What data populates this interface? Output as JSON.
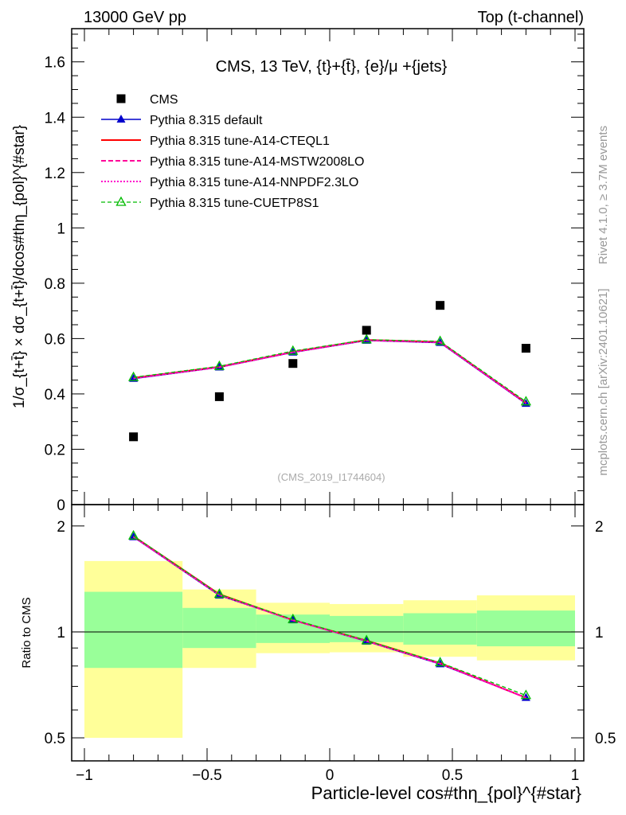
{
  "header": {
    "left": "13000 GeV pp",
    "right": "Top (t-channel)"
  },
  "side_labels": {
    "rivet": "Rivet 4.1.0, ≥ 3.7M events",
    "site": "mcplots.cern.ch [arXiv:2401.10621]"
  },
  "colors": {
    "cms": "#000000",
    "default": "#0000cc",
    "cteql1": "#ff0000",
    "mstw": "#ff0099",
    "nnpdf": "#ff00cc",
    "cuetp": "#00bb00",
    "band_inner": "#99ff99",
    "band_outer": "#ffff99"
  },
  "chart_data": [
    {
      "type": "scatter",
      "name": "main-panel",
      "title": "CMS, 13 TeV, {t}+{t̄}, {e}/μ +{jets}",
      "watermark": "(CMS_2019_I1744604)",
      "ylabel": "1/σ_{t+t̄} × dσ_{t+t̄}/dcos#thη_{pol}^{#star}",
      "xlim": [
        -1,
        1
      ],
      "ylim": [
        0,
        1.72
      ],
      "yticks": [
        0,
        0.2,
        0.4,
        0.6,
        0.8,
        1,
        1.2,
        1.4,
        1.6
      ],
      "ytick_labels": [
        "0",
        "0.2",
        "0.4",
        "0.6",
        "0.8",
        "1",
        "1.2",
        "1.4",
        "1.6"
      ],
      "x": [
        -0.8,
        -0.45,
        -0.15,
        0.15,
        0.45,
        0.8
      ],
      "series": [
        {
          "name": "CMS",
          "key": "cms",
          "style": "square",
          "values": [
            0.245,
            0.39,
            0.51,
            0.63,
            0.72,
            0.565
          ]
        },
        {
          "name": "Pythia 8.315 default",
          "key": "default",
          "style": "solid-tri",
          "values": [
            0.455,
            0.496,
            0.55,
            0.593,
            0.585,
            0.365
          ]
        },
        {
          "name": "Pythia 8.315 tune-A14-CTEQL1",
          "key": "cteql1",
          "style": "solid",
          "values": [
            0.458,
            0.498,
            0.552,
            0.595,
            0.588,
            0.368
          ]
        },
        {
          "name": "Pythia 8.315 tune-A14-MSTW2008LO",
          "key": "mstw",
          "style": "dashed",
          "values": [
            0.457,
            0.497,
            0.551,
            0.594,
            0.587,
            0.367
          ]
        },
        {
          "name": "Pythia 8.315 tune-A14-NNPDF2.3LO",
          "key": "nnpdf",
          "style": "dotted",
          "values": [
            0.456,
            0.497,
            0.551,
            0.594,
            0.586,
            0.366
          ]
        },
        {
          "name": "Pythia 8.315 tune-CUETP8S1",
          "key": "cuetp",
          "style": "dashed-opentri",
          "values": [
            0.46,
            0.5,
            0.555,
            0.596,
            0.59,
            0.372
          ]
        }
      ]
    },
    {
      "type": "line",
      "name": "ratio-panel",
      "ylabel": "Ratio to CMS",
      "xlabel": "Particle-level cos#thη_{pol}^{#star}",
      "xlim": [
        -1,
        1
      ],
      "ylim": [
        0.43,
        2.3
      ],
      "yticks": [
        0.5,
        1,
        2
      ],
      "ytick_labels": [
        "0.5",
        "1",
        "2"
      ],
      "xticks": [
        -1,
        -0.5,
        0,
        0.5,
        1
      ],
      "xtick_labels": [
        "−1",
        "−0.5",
        "0",
        "0.5",
        "1"
      ],
      "bin_edges": [
        -1,
        -0.6,
        -0.3,
        0,
        0.3,
        0.6,
        1
      ],
      "band_outer": [
        [
          0.5,
          1.59
        ],
        [
          0.79,
          1.32
        ],
        [
          0.87,
          1.21
        ],
        [
          0.875,
          1.2
        ],
        [
          0.85,
          1.23
        ],
        [
          0.83,
          1.27
        ]
      ],
      "band_inner": [
        [
          0.79,
          1.3
        ],
        [
          0.9,
          1.17
        ],
        [
          0.93,
          1.12
        ],
        [
          0.935,
          1.11
        ],
        [
          0.92,
          1.13
        ],
        [
          0.91,
          1.15
        ]
      ],
      "x": [
        -0.8,
        -0.45,
        -0.15,
        0.15,
        0.45,
        0.8
      ],
      "series": [
        {
          "name": "Pythia 8.315 default",
          "key": "default",
          "style": "solid-tri",
          "values": [
            1.86,
            1.27,
            1.08,
            0.94,
            0.81,
            0.65
          ]
        },
        {
          "name": "Pythia 8.315 tune-A14-CTEQL1",
          "key": "cteql1",
          "style": "solid",
          "values": [
            1.87,
            1.28,
            1.08,
            0.945,
            0.815,
            0.65
          ]
        },
        {
          "name": "Pythia 8.315 tune-A14-MSTW2008LO",
          "key": "mstw",
          "style": "dashed",
          "values": [
            1.865,
            1.275,
            1.08,
            0.942,
            0.813,
            0.65
          ]
        },
        {
          "name": "Pythia 8.315 tune-A14-NNPDF2.3LO",
          "key": "nnpdf",
          "style": "dotted",
          "values": [
            1.862,
            1.273,
            1.08,
            0.941,
            0.812,
            0.65
          ]
        },
        {
          "name": "Pythia 8.315 tune-CUETP8S1",
          "key": "cuetp",
          "style": "dashed-opentri",
          "values": [
            1.875,
            1.28,
            1.085,
            0.945,
            0.818,
            0.66
          ]
        }
      ]
    }
  ]
}
